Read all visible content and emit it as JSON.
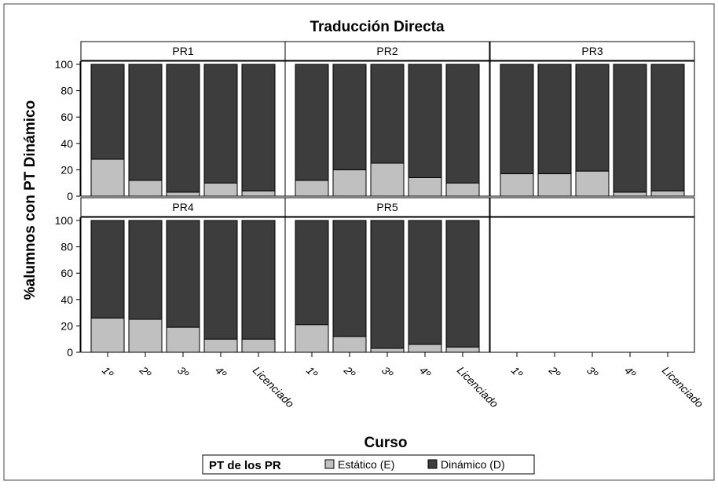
{
  "chart_data": {
    "type": "bar",
    "stacked": true,
    "title": "Traducción Directa",
    "xlabel": "Curso",
    "ylabel": "%alumnos con PT Dinámico",
    "ylim": [
      0,
      100
    ],
    "yticks": [
      0,
      20,
      40,
      60,
      80,
      100
    ],
    "categories": [
      "1º",
      "2º",
      "3º",
      "4º",
      "Licenciado"
    ],
    "legend": {
      "title": "PT de los PR",
      "position": "bottom",
      "entries": [
        {
          "name": "Estático (E)",
          "color": "#c0c0c0"
        },
        {
          "name": "Dinámico (D)",
          "color": "#3d3d3d"
        }
      ]
    },
    "panels": [
      {
        "label": "PR1",
        "series": [
          {
            "name": "Estático (E)",
            "values": [
              28,
              12,
              3,
              10,
              4
            ]
          },
          {
            "name": "Dinámico (D)",
            "values": [
              72,
              88,
              97,
              90,
              96
            ]
          }
        ]
      },
      {
        "label": "PR2",
        "series": [
          {
            "name": "Estático (E)",
            "values": [
              12,
              20,
              25,
              14,
              10
            ]
          },
          {
            "name": "Dinámico (D)",
            "values": [
              88,
              80,
              75,
              86,
              90
            ]
          }
        ]
      },
      {
        "label": "PR3",
        "series": [
          {
            "name": "Estático (E)",
            "values": [
              17,
              17,
              19,
              3,
              4
            ]
          },
          {
            "name": "Dinámico (D)",
            "values": [
              83,
              83,
              81,
              97,
              96
            ]
          }
        ]
      },
      {
        "label": "PR4",
        "series": [
          {
            "name": "Estático (E)",
            "values": [
              26,
              25,
              19,
              10,
              10
            ]
          },
          {
            "name": "Dinámico (D)",
            "values": [
              74,
              75,
              81,
              90,
              90
            ]
          }
        ]
      },
      {
        "label": "PR5",
        "series": [
          {
            "name": "Estático (E)",
            "values": [
              21,
              12,
              3,
              6,
              4
            ]
          },
          {
            "name": "Dinámico (D)",
            "values": [
              79,
              88,
              97,
              94,
              96
            ]
          }
        ]
      },
      {
        "label": "",
        "series": []
      }
    ]
  }
}
